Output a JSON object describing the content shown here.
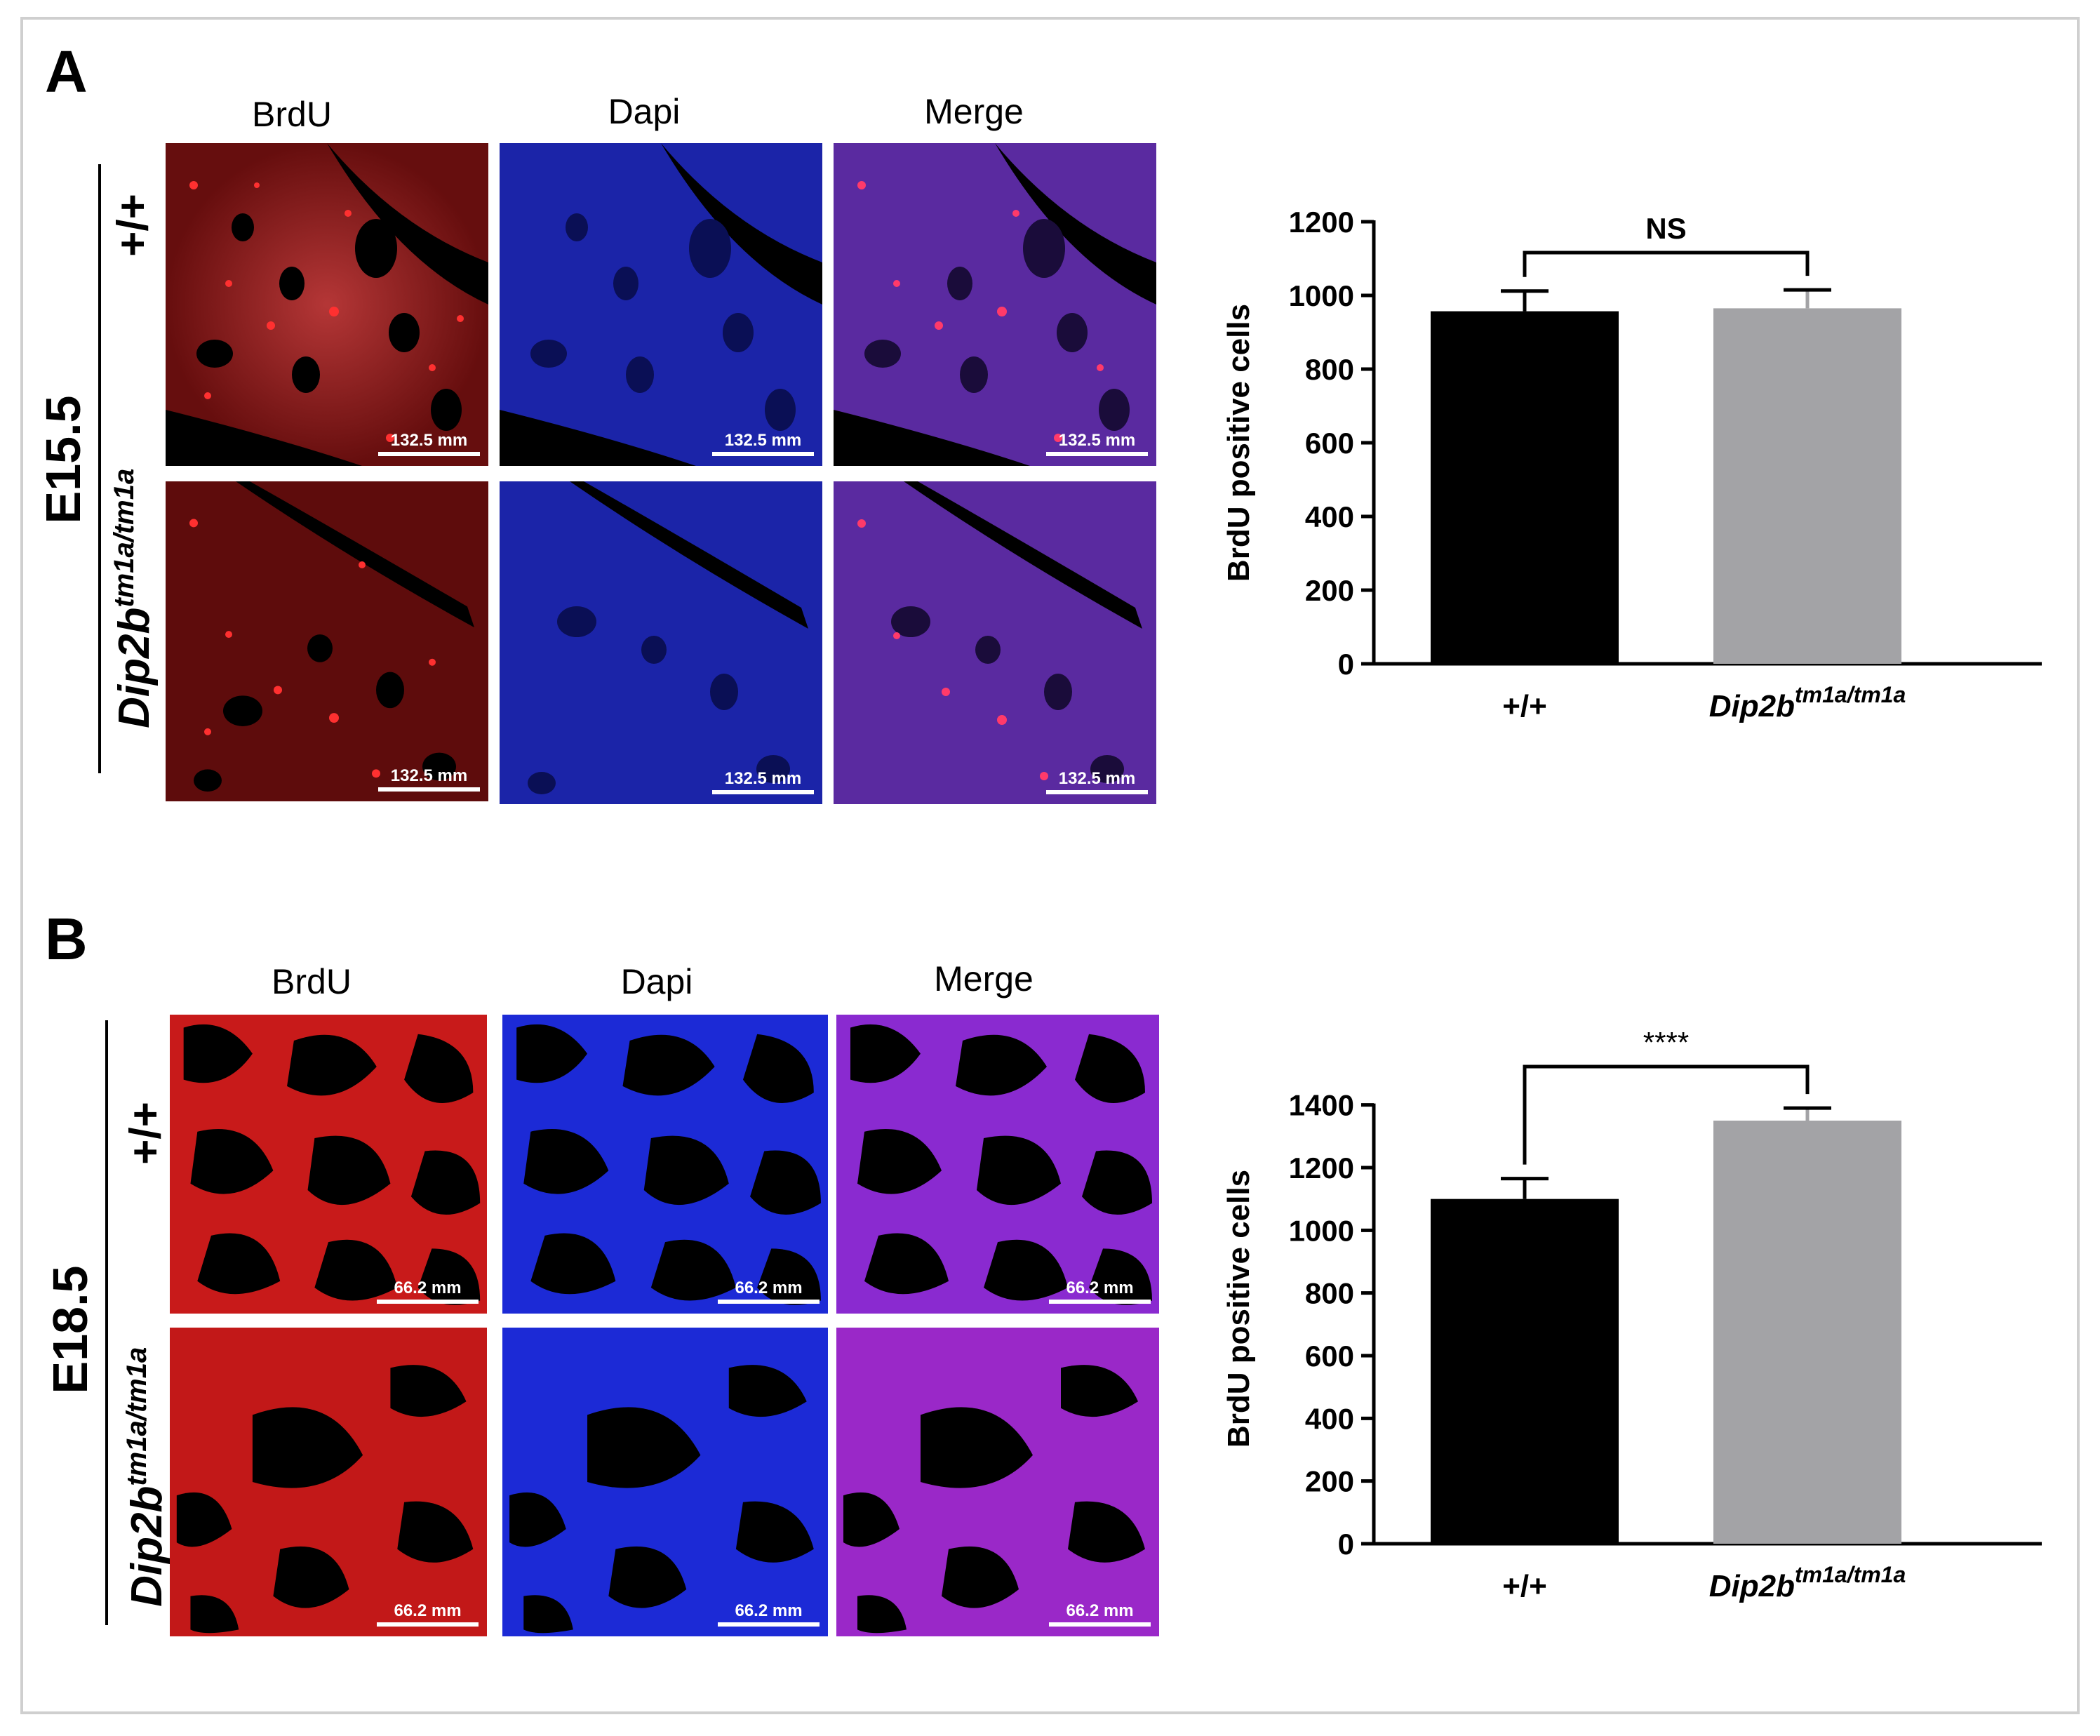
{
  "panels": [
    {
      "letter": "A",
      "stage": "E15.5",
      "columns": [
        "BrdU",
        "Dapi",
        "Merge"
      ],
      "genotype_wt": "+/+",
      "genotype_ko_base": "Dip2b",
      "genotype_ko_sup": "tm1a/tm1a",
      "scale_bar": "132.5 mm"
    },
    {
      "letter": "B",
      "stage": "E18.5",
      "columns": [
        "BrdU",
        "Dapi",
        "Merge"
      ],
      "genotype_wt": "+/+",
      "genotype_ko_base": "Dip2b",
      "genotype_ko_sup": "tm1a/tm1a",
      "scale_bar": "66.2 mm"
    }
  ],
  "colors": {
    "wildtype_bar": "#000000",
    "mutant_bar": "#a3a3a6",
    "brdu": "#e01212",
    "dapi": "#1d2bd8",
    "merge": "#8a2ad0",
    "frame": "#cfcfcf"
  },
  "chart_data": [
    {
      "type": "bar",
      "categories": [
        "+/+",
        "Dip2b tm1a/tm1a"
      ],
      "category_labels": [
        {
          "base": "+/+",
          "sup": ""
        },
        {
          "base": "Dip2b",
          "sup": "tm1a/tm1a"
        }
      ],
      "values": [
        957,
        965
      ],
      "errors": [
        55,
        50
      ],
      "ylabel": "BrdU positive cells",
      "ylim": [
        0,
        1200
      ],
      "yticks": [
        0,
        200,
        400,
        600,
        800,
        1000,
        1200
      ],
      "significance": {
        "label": "NS",
        "bold": true
      },
      "grid": false
    },
    {
      "type": "bar",
      "categories": [
        "+/+",
        "Dip2b tm1a/tm1a"
      ],
      "category_labels": [
        {
          "base": "+/+",
          "sup": ""
        },
        {
          "base": "Dip2b",
          "sup": "tm1a/tm1a"
        }
      ],
      "values": [
        1100,
        1350
      ],
      "errors": [
        65,
        40
      ],
      "ylabel": "BrdU positive cells",
      "ylim": [
        0,
        1500
      ],
      "yticks": [
        0,
        200,
        400,
        600,
        800,
        1000,
        1200,
        1400
      ],
      "significance": {
        "label": "****",
        "bold": false
      },
      "grid": false
    }
  ]
}
